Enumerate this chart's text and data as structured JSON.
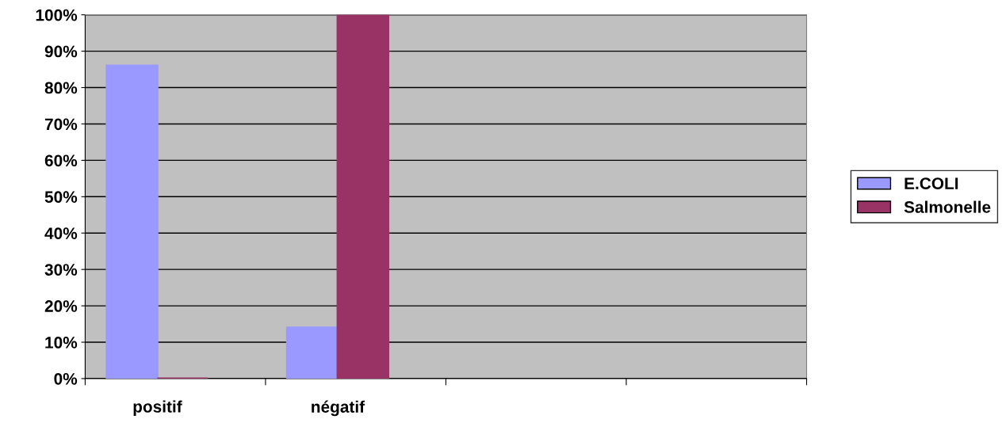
{
  "chart_data": {
    "type": "bar",
    "categories": [
      "positif",
      "négatif",
      null,
      null
    ],
    "series": [
      {
        "name": "E.COLI",
        "color": "#9999ff",
        "values": [
          86,
          14,
          null,
          null
        ]
      },
      {
        "name": "Salmonelle",
        "color": "#993366",
        "values": [
          0,
          100,
          null,
          null
        ]
      }
    ],
    "ylim": [
      0,
      100
    ],
    "yticks": [
      {
        "value": 0,
        "label": "0%"
      },
      {
        "value": 10,
        "label": "10%"
      },
      {
        "value": 20,
        "label": "20%"
      },
      {
        "value": 30,
        "label": "30%"
      },
      {
        "value": 40,
        "label": "40%"
      },
      {
        "value": 50,
        "label": "50%"
      },
      {
        "value": 60,
        "label": "60%"
      },
      {
        "value": 70,
        "label": "70%"
      },
      {
        "value": 80,
        "label": "80%"
      },
      {
        "value": 90,
        "label": "90%"
      },
      {
        "value": 100,
        "label": "100%"
      }
    ],
    "grid": "y",
    "legend": "right"
  }
}
